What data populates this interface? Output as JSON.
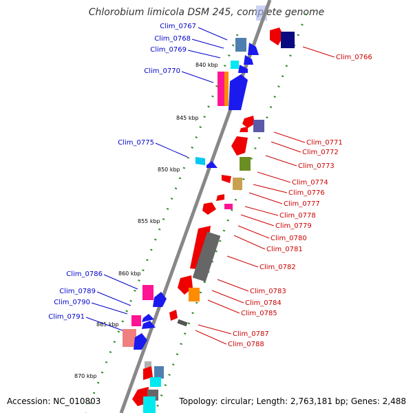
{
  "title": "Chlorobium limicola DSM 245, complete genome",
  "footer": {
    "accession": "Accession: NC_010803",
    "topology": "Topology: circular; Length: 2,763,181 bp; Genes: 2,488"
  },
  "ticks": [
    "840 kbp",
    "845 kbp",
    "850 kbp",
    "855 kbp",
    "860 kbp",
    "865 kbp",
    "870 kbp"
  ],
  "genes_left": [
    "Clim_0767",
    "Clim_0768",
    "Clim_0769",
    "Clim_0770",
    "Clim_0775",
    "Clim_0786",
    "Clim_0789",
    "Clim_0790",
    "Clim_0791"
  ],
  "genes_right": [
    "Clim_0766",
    "Clim_0771",
    "Clim_0772",
    "Clim_0773",
    "Clim_0774",
    "Clim_0776",
    "Clim_0777",
    "Clim_0778",
    "Clim_0779",
    "Clim_0780",
    "Clim_0781",
    "Clim_0782",
    "Clim_0783",
    "Clim_0784",
    "Clim_0785",
    "Clim_0787",
    "Clim_0788"
  ],
  "colors": {
    "backbone": "#888888",
    "forward_label": "#0000cc",
    "reverse_label": "#cc0000",
    "tick_dots": "#2a8a2a"
  }
}
